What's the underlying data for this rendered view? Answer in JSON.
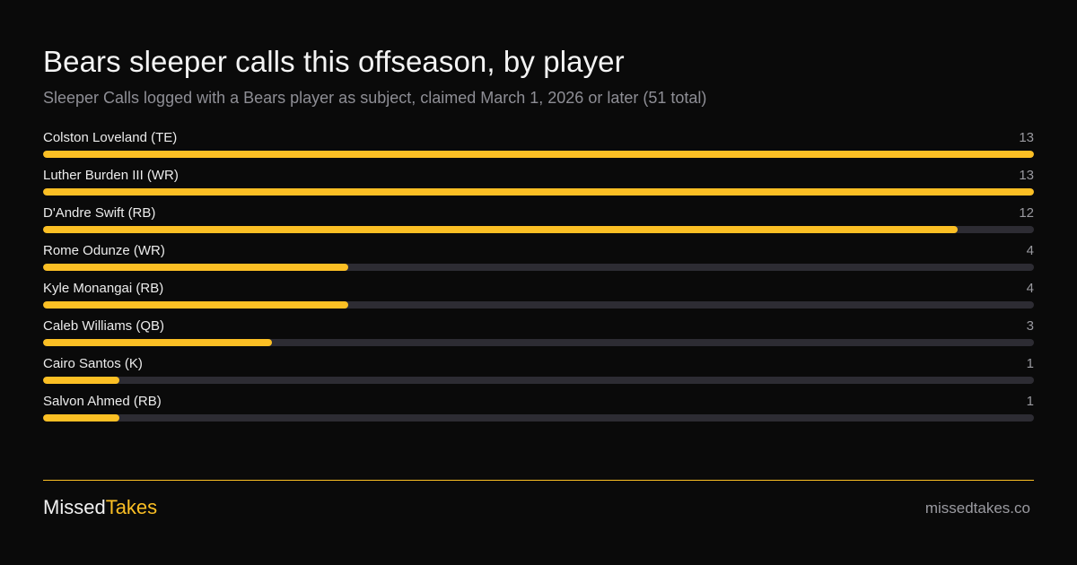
{
  "header": {
    "title": "Bears sleeper calls this offseason, by player",
    "subtitle": "Sleeper Calls logged with a Bears player as subject, claimed March 1, 2026 or later (51 total)"
  },
  "colors": {
    "accent": "#fbbf24",
    "track": "#2d2c33",
    "background": "#0a0a0a"
  },
  "chart_data": {
    "type": "bar",
    "orientation": "horizontal",
    "title": "Bears sleeper calls this offseason, by player",
    "subtitle": "Sleeper Calls logged with a Bears player as subject, claimed March 1, 2026 or later (51 total)",
    "categories": [
      "Colston Loveland (TE)",
      "Luther Burden III (WR)",
      "D'Andre Swift (RB)",
      "Rome Odunze (WR)",
      "Kyle Monangai (RB)",
      "Caleb Williams (QB)",
      "Cairo Santos (K)",
      "Salvon Ahmed (RB)"
    ],
    "values": [
      13,
      13,
      12,
      4,
      4,
      3,
      1,
      1
    ],
    "xlim": [
      0,
      13
    ],
    "grid": false,
    "legend": "none"
  },
  "footer": {
    "brand_part1": "Missed",
    "brand_part2": "Takes",
    "site": "missedtakes.co"
  }
}
